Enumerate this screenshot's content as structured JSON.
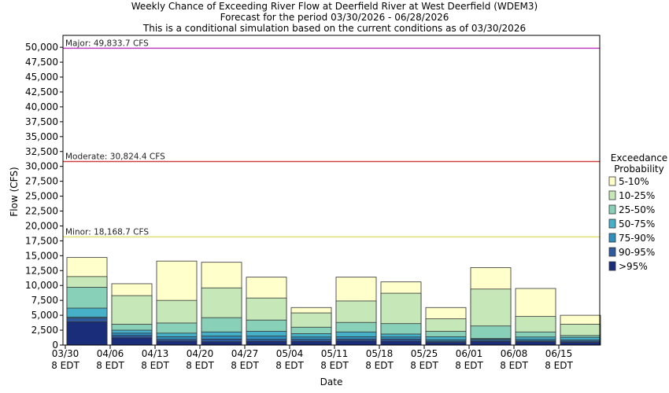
{
  "chart_data": {
    "type": "bar",
    "title": "Weekly Chance of Exceeding River Flow at Deerfield River at West Deerfield (WDEM3)",
    "subtitle": "Forecast for the period 03/30/2026 - 06/28/2026",
    "subtitle2": "This is a conditional simulation based on the current conditions as of 03/30/2026",
    "xlabel": "Date",
    "ylabel": "Flow (CFS)",
    "ylim": [
      0,
      52000
    ],
    "yticks": [
      0,
      2500,
      5000,
      7500,
      10000,
      12500,
      15000,
      17500,
      20000,
      22500,
      25000,
      27500,
      30000,
      32500,
      35000,
      37500,
      40000,
      42500,
      45000,
      47500,
      50000
    ],
    "ytick_labels": [
      "0",
      "2,500",
      "5,000",
      "7,500",
      "10,000",
      "12,500",
      "15,000",
      "17,500",
      "20,000",
      "22,500",
      "25,000",
      "27,500",
      "30,000",
      "32,500",
      "35,000",
      "37,500",
      "40,000",
      "42,500",
      "45,000",
      "47,500",
      "50,000"
    ],
    "xtick_labels": [
      {
        "date": "03/30",
        "tz": "8 EDT"
      },
      {
        "date": "04/06",
        "tz": "8 EDT"
      },
      {
        "date": "04/13",
        "tz": "8 EDT"
      },
      {
        "date": "04/20",
        "tz": "8 EDT"
      },
      {
        "date": "04/27",
        "tz": "8 EDT"
      },
      {
        "date": "05/04",
        "tz": "8 EDT"
      },
      {
        "date": "05/11",
        "tz": "8 EDT"
      },
      {
        "date": "05/18",
        "tz": "8 EDT"
      },
      {
        "date": "05/25",
        "tz": "8 EDT"
      },
      {
        "date": "06/01",
        "tz": "8 EDT"
      },
      {
        "date": "06/08",
        "tz": "8 EDT"
      },
      {
        "date": "06/15",
        "tz": "8 EDT"
      }
    ],
    "legend_title": [
      "Exceedance",
      "Probability"
    ],
    "legend_position": "right",
    "grid": false,
    "thresholds": [
      {
        "label": "Major: 49,833.7 CFS",
        "value": 49833.7,
        "color": "#c040c0"
      },
      {
        "label": "Moderate: 30,824.4 CFS",
        "value": 30824.4,
        "color": "#d04040"
      },
      {
        "label": "Minor: 18,168.7 CFS",
        "value": 18168.7,
        "color": "#e0e070"
      }
    ],
    "series": [
      {
        "name": ">95%",
        "color": "#1a2d7a",
        "values": [
          3900,
          1200,
          650,
          550,
          600,
          600,
          700,
          650,
          450,
          600,
          550,
          450
        ]
      },
      {
        "name": "90-95%",
        "color": "#2e5aa0",
        "values": [
          4500,
          1600,
          950,
          1000,
          950,
          950,
          1000,
          1000,
          650,
          800,
          700,
          650
        ]
      },
      {
        "name": "75-90%",
        "color": "#2f8fbf",
        "values": [
          4700,
          2000,
          1400,
          1500,
          1500,
          1350,
          1400,
          1350,
          900,
          1000,
          950,
          850
        ]
      },
      {
        "name": "50-75%",
        "color": "#46b0c8",
        "values": [
          6200,
          2500,
          2000,
          2200,
          2300,
          1900,
          2200,
          1850,
          1400,
          1100,
          1350,
          1300
        ]
      },
      {
        "name": "25-50%",
        "color": "#88d0b8",
        "values": [
          9700,
          3500,
          3700,
          4600,
          4200,
          3000,
          3800,
          3600,
          2300,
          3200,
          2200,
          1600
        ]
      },
      {
        "name": "10-25%",
        "color": "#c6e8b8",
        "values": [
          11500,
          8300,
          7500,
          9600,
          7900,
          5400,
          7400,
          8700,
          4400,
          9400,
          4800,
          3500
        ]
      },
      {
        "name": "5-10%",
        "color": "#ffffcc",
        "values": [
          14700,
          10300,
          14100,
          13900,
          11400,
          6300,
          11400,
          10600,
          6300,
          13000,
          9500,
          5000
        ]
      }
    ]
  }
}
